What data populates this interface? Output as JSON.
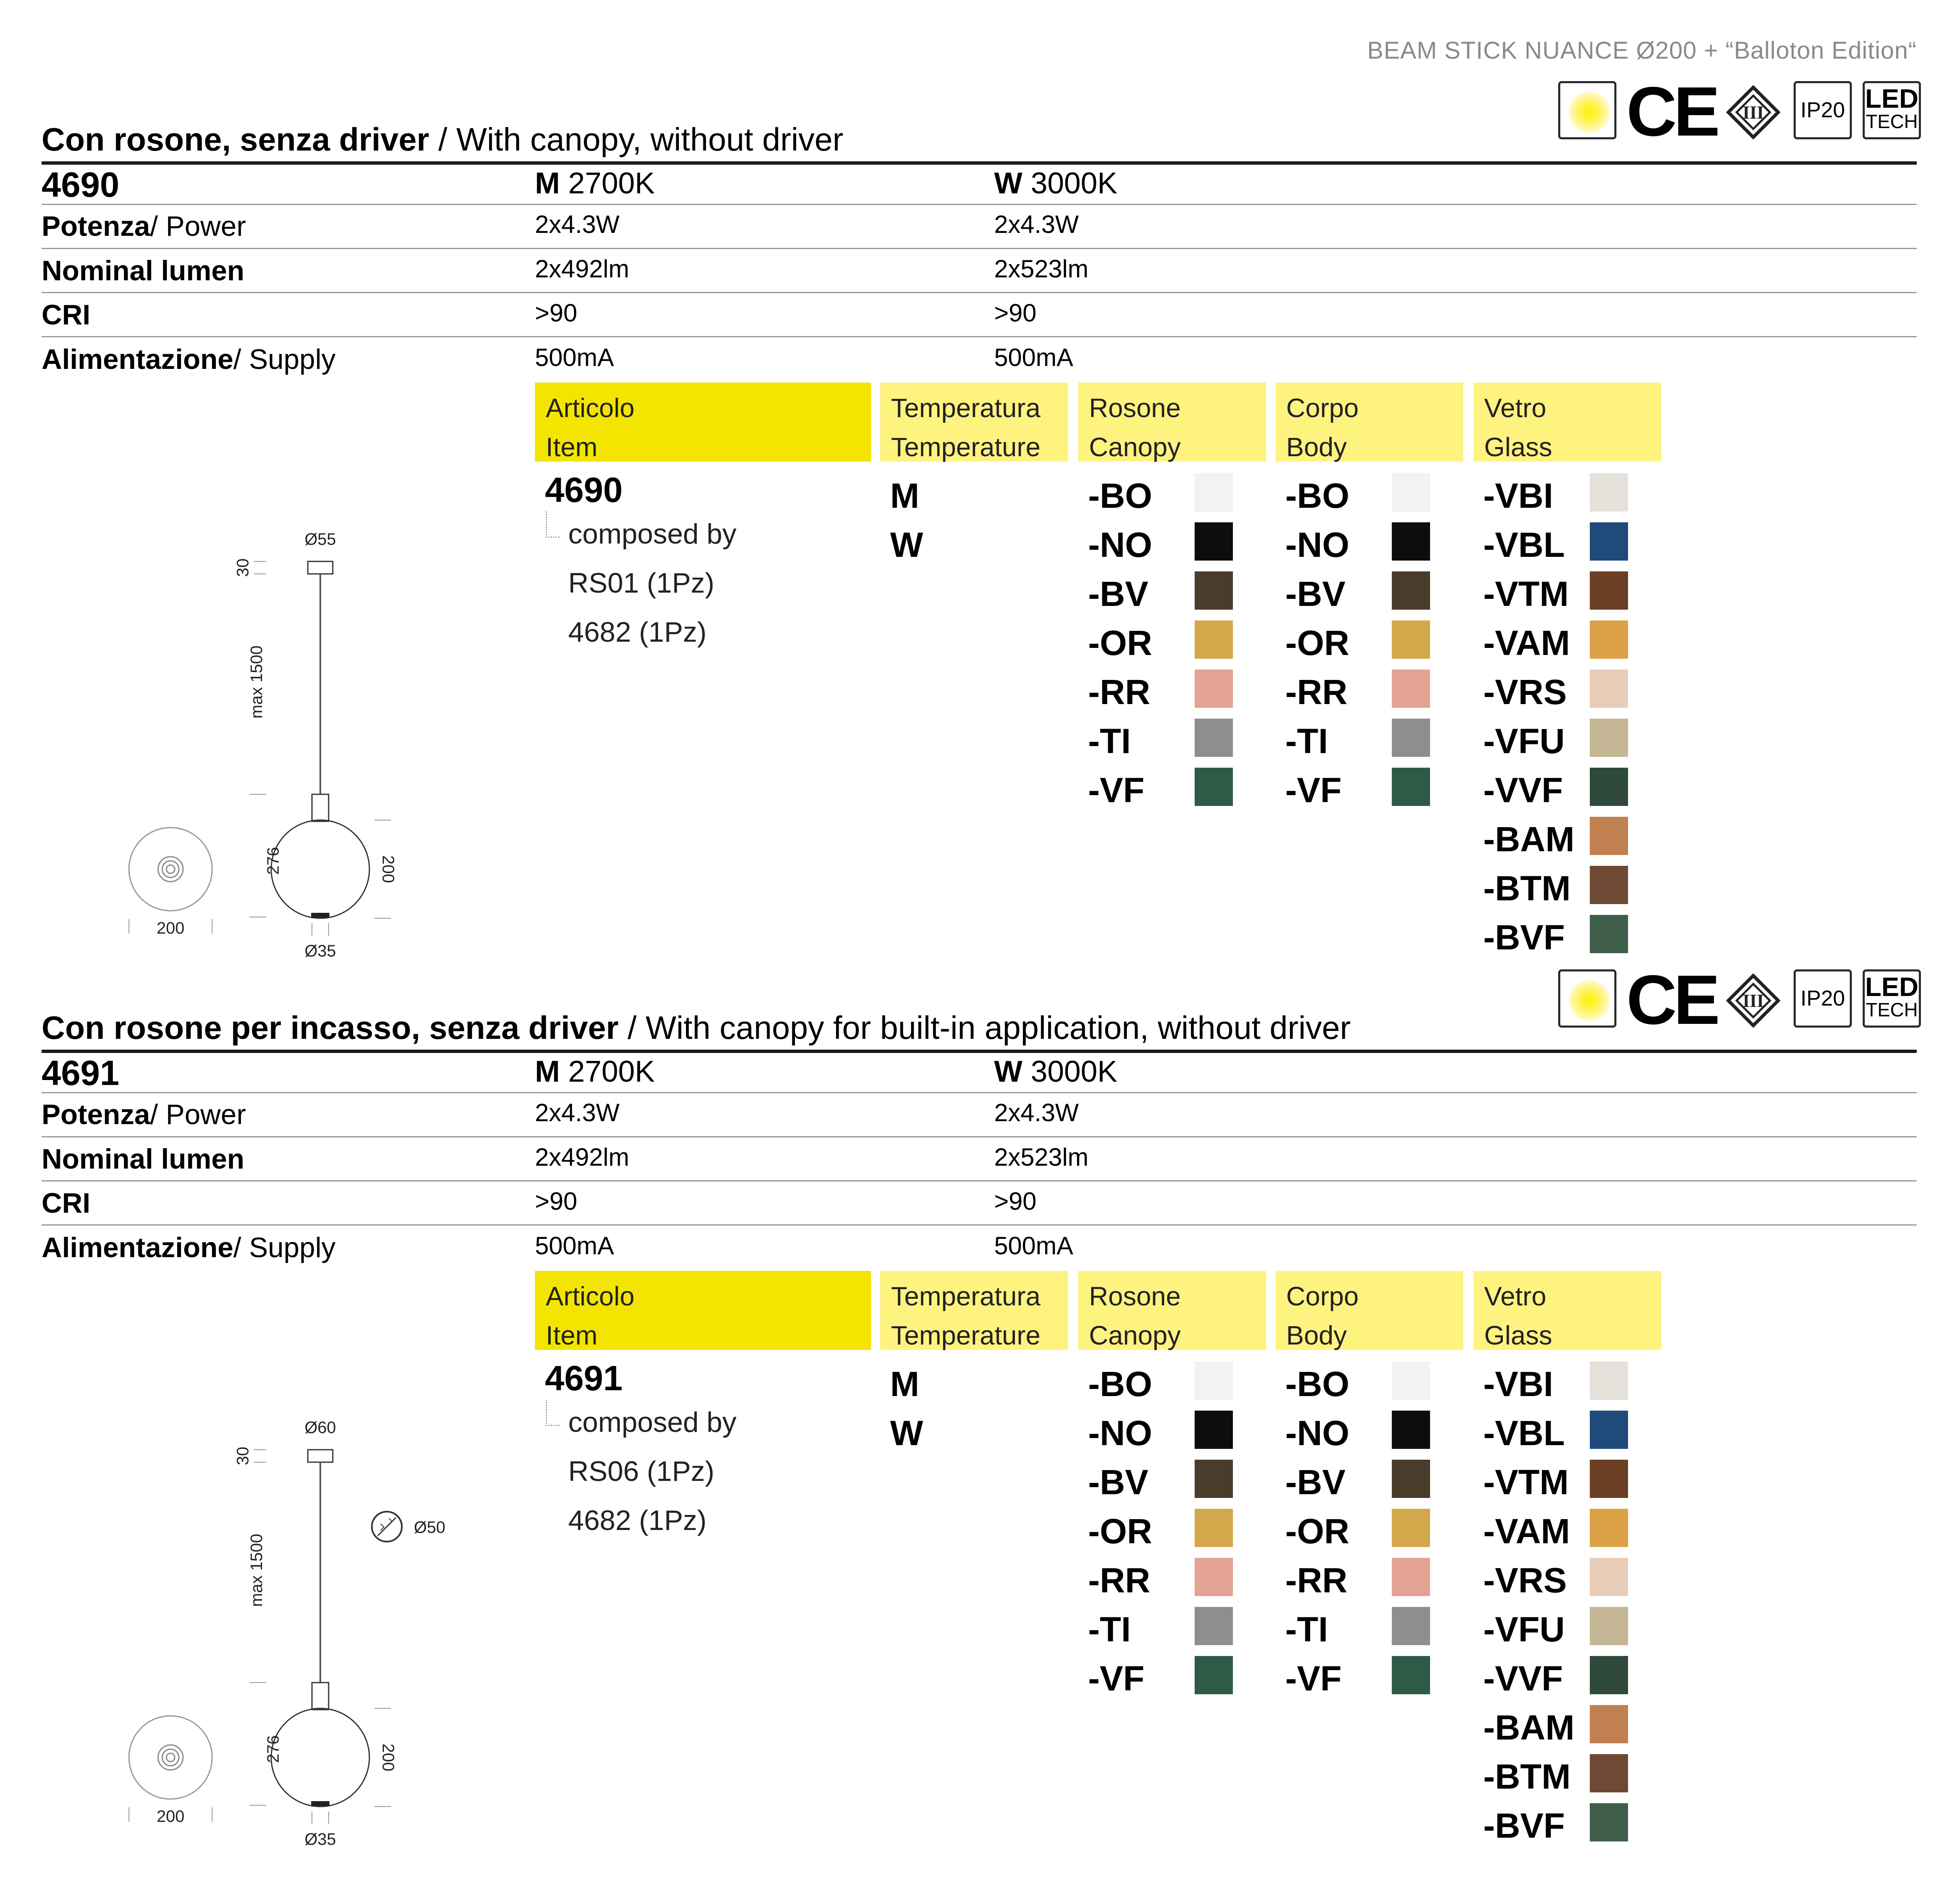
{
  "document_title": "BEAM STICK NUANCE Ø200 + “Balloton Edition“",
  "certification_icons": [
    {
      "name": "sun-icon"
    },
    {
      "name": "ce-mark-icon",
      "text": "CE"
    },
    {
      "name": "class-iii-icon",
      "text": "III"
    },
    {
      "name": "ip-rating-icon",
      "text": "IP20"
    },
    {
      "name": "led-tech-icon",
      "line1": "LED",
      "line2": "TECH"
    }
  ],
  "row_labels": {
    "power_bold": "Potenza",
    "power_rest": "/ Power",
    "lumen": "Nominal lumen",
    "cri": "CRI",
    "supply_bold": "Alimentazione",
    "supply_rest": "/ Supply"
  },
  "table_headers": [
    {
      "line1": "Articolo",
      "line2": "Item"
    },
    {
      "line1": "Temperatura",
      "line2": "Temperature"
    },
    {
      "line1": "Rosone",
      "line2": "Canopy"
    },
    {
      "line1": "Corpo",
      "line2": "Body"
    },
    {
      "line1": "Vetro",
      "line2": "Glass"
    }
  ],
  "temperature_options": [
    "M",
    "W"
  ],
  "canopy_options": [
    {
      "code": "-BO",
      "color": "#f2f2f2"
    },
    {
      "code": "-NO",
      "color": "#0d0d0d"
    },
    {
      "code": "-BV",
      "color": "#4a3c2a"
    },
    {
      "code": "-OR",
      "color": "#d4a74a"
    },
    {
      "code": "-RR",
      "color": "#e3a394"
    },
    {
      "code": "-TI",
      "color": "#8e8e8e"
    },
    {
      "code": "-VF",
      "color": "#2e5b48"
    }
  ],
  "body_options": [
    {
      "code": "-BO",
      "color": "#f2f2f2"
    },
    {
      "code": "-NO",
      "color": "#0d0d0d"
    },
    {
      "code": "-BV",
      "color": "#4a3c2a"
    },
    {
      "code": "-OR",
      "color": "#d4a74a"
    },
    {
      "code": "-RR",
      "color": "#e3a394"
    },
    {
      "code": "-TI",
      "color": "#8e8e8e"
    },
    {
      "code": "-VF",
      "color": "#2e5b48"
    }
  ],
  "glass_options": [
    {
      "code": "-VBI",
      "color": "#e6e0da"
    },
    {
      "code": "-VBL",
      "color": "#1f4a7a"
    },
    {
      "code": "-VTM",
      "color": "#6a3f22"
    },
    {
      "code": "-VAM",
      "color": "#dba246"
    },
    {
      "code": "-VRS",
      "color": "#e8cdb8"
    },
    {
      "code": "-VFU",
      "color": "#c4b694"
    },
    {
      "code": "-VVF",
      "color": "#2f4a3a"
    },
    {
      "code": "-BAM",
      "color": "#c08050"
    },
    {
      "code": "-BTM",
      "color": "#6e4a34"
    },
    {
      "code": "-BVF",
      "color": "#3f5e4a"
    }
  ],
  "sections": [
    {
      "title_bold": "Con rosone, senza driver",
      "title_rest": " / With canopy, without driver",
      "code": "4690",
      "variant_m_letter": "M",
      "variant_m_temp": " 2700K",
      "variant_w_letter": "W",
      "variant_w_temp": " 3000K",
      "power_m": "2x4.3W",
      "power_w": "2x4.3W",
      "lumen_m": "2x492lm",
      "lumen_w": "2x523lm",
      "cri_m": ">90",
      "cri_w": ">90",
      "supply_m": "500mA",
      "supply_w": "500mA",
      "item_code": "4690",
      "composed_label": "composed by",
      "components": [
        "RS01 (1Pz)",
        "4682 (1Pz)"
      ],
      "drawing": {
        "canopy_dia": "Ø55",
        "canopy_h": "30",
        "cable_len": "max 1500",
        "sphere_h": "276",
        "sphere_dia": "200",
        "base_dia": "Ø35",
        "plan_dia": "200",
        "cutout_dia": ""
      }
    },
    {
      "title_bold": "Con rosone per incasso, senza driver",
      "title_rest": " / With canopy for built-in application, without driver",
      "code": "4691",
      "variant_m_letter": "M",
      "variant_m_temp": " 2700K",
      "variant_w_letter": "W",
      "variant_w_temp": " 3000K",
      "power_m": "2x4.3W",
      "power_w": "2x4.3W",
      "lumen_m": "2x492lm",
      "lumen_w": "2x523lm",
      "cri_m": ">90",
      "cri_w": ">90",
      "supply_m": "500mA",
      "supply_w": "500mA",
      "item_code": "4691",
      "composed_label": "composed by",
      "components": [
        "RS06 (1Pz)",
        "4682 (1Pz)"
      ],
      "drawing": {
        "canopy_dia": "Ø60",
        "canopy_h": "30",
        "cable_len": "max 1500",
        "sphere_h": "276",
        "sphere_dia": "200",
        "base_dia": "Ø35",
        "plan_dia": "200",
        "cutout_dia": "Ø50"
      }
    }
  ]
}
